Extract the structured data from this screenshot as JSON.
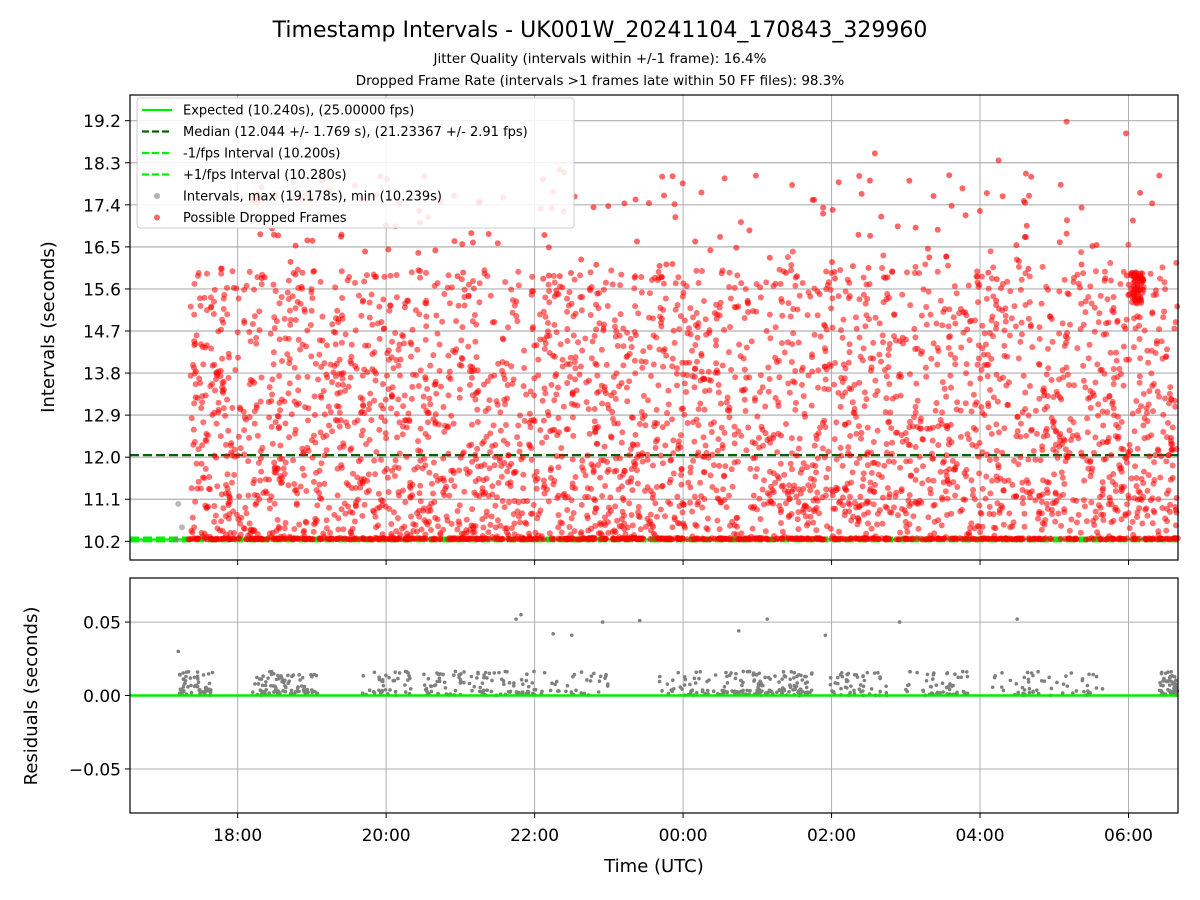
{
  "title": "Timestamp Intervals - UK001W_20241104_170843_329960",
  "subtitle_lines": [
    "Jitter Quality (intervals within +/-1 frame): 16.4%",
    "Dropped Frame Rate (intervals >1 frames late within 50 FF files): 98.3%"
  ],
  "colors": {
    "expected": "#00ee00",
    "median": "#006400",
    "dropped": "#ff0000",
    "intervals": "#808080",
    "grid": "#b0b0b0"
  },
  "chart_data": [
    {
      "type": "scatter",
      "ylabel": "Intervals (seconds)",
      "ylim": [
        9.8,
        19.75
      ],
      "yticks": [
        10.2,
        11.1,
        12.0,
        12.9,
        13.8,
        14.7,
        15.6,
        16.5,
        17.4,
        18.3,
        19.2
      ],
      "ytick_labels": [
        "10.2",
        "11.1",
        "12.0",
        "12.9",
        "13.8",
        "14.7",
        "15.6",
        "16.5",
        "17.4",
        "18.3",
        "19.2"
      ],
      "xlim": [
        "2024-11-04 16:33",
        "2024-11-05 06:40"
      ],
      "grid": true,
      "legend_position": "upper-left",
      "legend": [
        {
          "label": "Expected (10.240s), (25.00000 fps)",
          "style": "solid",
          "color": "#00ee00"
        },
        {
          "label": "Median (12.044 +/- 1.769 s), (21.23367 +/- 2.91 fps)",
          "style": "dashed",
          "color": "#006400"
        },
        {
          "label": "-1/fps Interval (10.200s)",
          "style": "dashed",
          "color": "#00ee00"
        },
        {
          "label": "+1/fps Interval (10.280s)",
          "style": "dashed",
          "color": "#00ee00"
        },
        {
          "label": "Intervals, max (19.178s), min (10.239s)",
          "style": "marker",
          "color": "#808080"
        },
        {
          "label": "Possible Dropped Frames",
          "style": "marker",
          "color": "#ff0000"
        }
      ],
      "reference_lines": [
        {
          "name": "expected",
          "y": 10.24
        },
        {
          "name": "median",
          "y": 12.044
        },
        {
          "name": "minus-one-frame",
          "y": 10.2
        },
        {
          "name": "plus-one-frame",
          "y": 10.28
        }
      ],
      "time_range": [
        "2024-11-04 17:12",
        "2024-11-05 06:40"
      ],
      "series": [
        {
          "name": "Intervals, max (19.178s), min (10.239s)",
          "count": 3800,
          "min": 10.239,
          "max": 19.178
        },
        {
          "name": "Possible Dropped Frames",
          "count": 3740,
          "median": 12.044
        }
      ],
      "notable_points": [
        {
          "x": "2024-11-05 05:10",
          "y": 19.18
        },
        {
          "x": "2024-11-05 05:58",
          "y": 18.93
        },
        {
          "x": "2024-11-05 04:15",
          "y": 18.35
        },
        {
          "x": "2024-11-05 02:35",
          "y": 18.5
        },
        {
          "x": "2024-11-04 22:20",
          "y": 18.15
        },
        {
          "x": "2024-11-05 06:05",
          "y": 15.6
        }
      ]
    },
    {
      "type": "scatter",
      "ylabel": "Residuals (seconds)",
      "xlabel": "Time (UTC)",
      "ylim": [
        -0.08,
        0.08
      ],
      "yticks": [
        -0.05,
        0.0,
        0.05
      ],
      "ytick_labels": [
        "−0.05",
        "0.00",
        "0.05"
      ],
      "xlim": [
        "2024-11-04 16:33",
        "2024-11-05 06:40"
      ],
      "xticks": [
        "18:00",
        "20:00",
        "22:00",
        "00:00",
        "02:00",
        "04:00",
        "06:00"
      ],
      "grid": true,
      "reference_lines": [
        {
          "name": "zero",
          "y": 0.0
        }
      ],
      "series": [
        {
          "name": "residuals",
          "count": 700,
          "min": 0.0,
          "max": 0.055
        }
      ],
      "notable_points": [
        {
          "x": "2024-11-04 17:12",
          "y": 0.03
        },
        {
          "x": "2024-11-04 21:49",
          "y": 0.055
        },
        {
          "x": "2024-11-04 21:45",
          "y": 0.052
        },
        {
          "x": "2024-11-04 22:15",
          "y": 0.042
        },
        {
          "x": "2024-11-04 22:30",
          "y": 0.041
        },
        {
          "x": "2024-11-04 22:55",
          "y": 0.05
        },
        {
          "x": "2024-11-04 23:25",
          "y": 0.051
        },
        {
          "x": "2024-11-05 00:45",
          "y": 0.044
        },
        {
          "x": "2024-11-05 01:08",
          "y": 0.052
        },
        {
          "x": "2024-11-05 01:55",
          "y": 0.041
        },
        {
          "x": "2024-11-05 02:55",
          "y": 0.05
        },
        {
          "x": "2024-11-05 04:30",
          "y": 0.052
        }
      ]
    }
  ]
}
